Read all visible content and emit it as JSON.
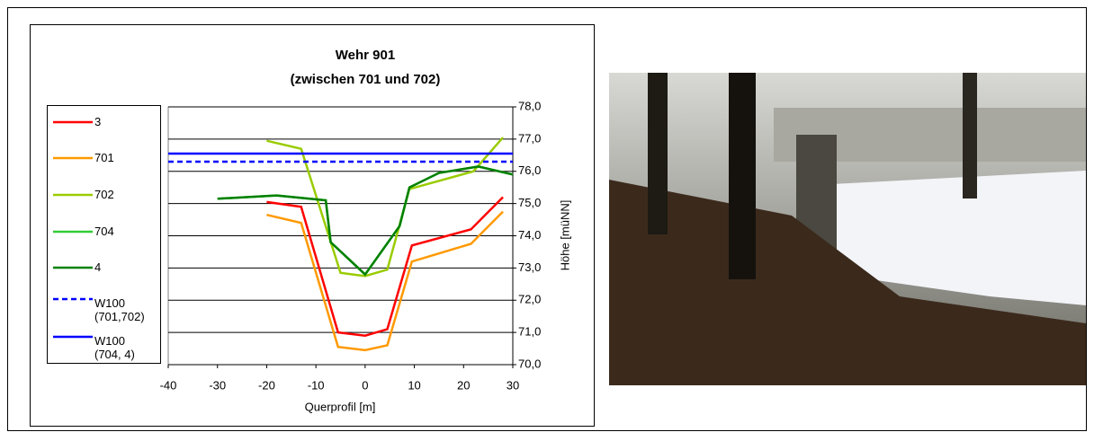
{
  "chart_data": {
    "type": "line",
    "title": "Wehr 901",
    "subtitle": "(zwischen 701 und 702)",
    "x_label": "Querprofil [m]",
    "y_label": "Höhe [müNN]",
    "xlim": [
      -40,
      30
    ],
    "xticks": [
      -40,
      -30,
      -20,
      -10,
      0,
      10,
      20,
      30
    ],
    "ylim": [
      70,
      78
    ],
    "yticks": [
      {
        "value": 70,
        "label": "70,0"
      },
      {
        "value": 71,
        "label": "71,0"
      },
      {
        "value": 72,
        "label": "72,0"
      },
      {
        "value": 73,
        "label": "73,0"
      },
      {
        "value": 74,
        "label": "74,0"
      },
      {
        "value": 75,
        "label": "75,0"
      },
      {
        "value": 76,
        "label": "76,0"
      },
      {
        "value": 77,
        "label": "77,0"
      },
      {
        "value": 78,
        "label": "78,0"
      }
    ],
    "grid": true,
    "y_axis_side": "right",
    "series": [
      {
        "name": "3",
        "color": "#ff0000",
        "x": [
          -20,
          -13,
          -5.5,
          0,
          4.5,
          9.5,
          21.5,
          28
        ],
        "values": [
          75.05,
          74.9,
          71.0,
          70.9,
          71.1,
          73.7,
          74.2,
          75.2
        ]
      },
      {
        "name": "701",
        "color": "#ff9900",
        "x": [
          -20,
          -13,
          -5.5,
          0,
          4.5,
          9.5,
          21.5,
          28
        ],
        "values": [
          74.65,
          74.4,
          70.55,
          70.45,
          70.6,
          73.2,
          73.75,
          74.75
        ]
      },
      {
        "name": "702",
        "color": "#99cc00",
        "x": [
          -20,
          -13,
          -5,
          0,
          4.5,
          9,
          22,
          28
        ],
        "values": [
          76.95,
          76.7,
          72.85,
          72.75,
          72.95,
          75.45,
          76.0,
          77.05
        ]
      },
      {
        "name": "704",
        "color": "#33cc33",
        "x": [
          -30,
          -18,
          -8,
          -7,
          0,
          7,
          9,
          15,
          23,
          30
        ],
        "values": [
          75.15,
          75.25,
          75.1,
          73.8,
          72.8,
          74.3,
          75.5,
          75.95,
          76.15,
          75.9
        ]
      },
      {
        "name": "4",
        "color": "#008000",
        "x": [
          -30,
          -18,
          -8,
          -7,
          0,
          7,
          9,
          15,
          23,
          30
        ],
        "values": [
          75.15,
          75.25,
          75.1,
          73.8,
          72.8,
          74.3,
          75.5,
          75.95,
          76.15,
          75.9
        ]
      },
      {
        "name": "W100 (701,702)",
        "color": "#0000ff",
        "dashed": true,
        "x": [
          -40,
          30
        ],
        "values": [
          76.3,
          76.3
        ]
      },
      {
        "name": "W100 (704, 4)",
        "color": "#0000ff",
        "x": [
          -40,
          30
        ],
        "values": [
          76.55,
          76.55
        ]
      }
    ]
  }
}
